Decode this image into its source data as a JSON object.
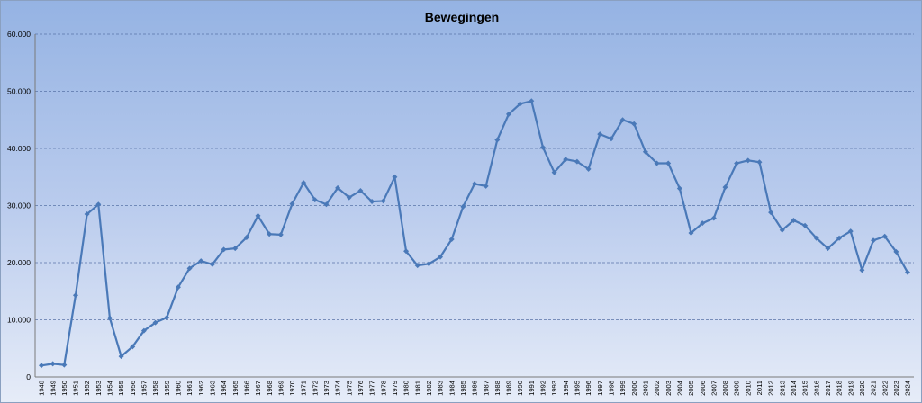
{
  "chart_data": {
    "type": "line",
    "title": "Bewegingen",
    "xlabel": "",
    "ylabel": "",
    "ylim": [
      0,
      60000
    ],
    "y_ticks": [
      0,
      10000,
      20000,
      30000,
      40000,
      50000,
      60000
    ],
    "y_tick_labels": [
      "0",
      "10.000",
      "20.000",
      "30.000",
      "40.000",
      "50.000",
      "60.000"
    ],
    "grid": true,
    "legend": "none",
    "line_color": "#4a79b8",
    "categories": [
      "1948",
      "1949",
      "1950",
      "1951",
      "1952",
      "1953",
      "1954",
      "1955",
      "1956",
      "1957",
      "1958",
      "1959",
      "1960",
      "1961",
      "1962",
      "1963",
      "1964",
      "1965",
      "1966",
      "1967",
      "1968",
      "1969",
      "1970",
      "1971",
      "1972",
      "1973",
      "1974",
      "1975",
      "1976",
      "1977",
      "1978",
      "1979",
      "1980",
      "1981",
      "1982",
      "1983",
      "1984",
      "1985",
      "1986",
      "1987",
      "1988",
      "1989",
      "1990",
      "1991",
      "1992",
      "1993",
      "1994",
      "1995",
      "1996",
      "1997",
      "1998",
      "1999",
      "2000",
      "2001",
      "2002",
      "2003",
      "2004",
      "2005",
      "2006",
      "2007",
      "2008",
      "2009",
      "2010",
      "2011",
      "2012",
      "2013",
      "2014",
      "2015",
      "2016",
      "2017",
      "2018",
      "2019",
      "2020",
      "2021",
      "2022",
      "2023",
      "2024"
    ],
    "values": [
      2000,
      2300,
      2100,
      14300,
      28500,
      30200,
      10300,
      3600,
      5300,
      8100,
      9500,
      10400,
      15700,
      19000,
      20300,
      19700,
      22300,
      22500,
      24400,
      28200,
      25000,
      24900,
      30300,
      34000,
      31000,
      30200,
      33100,
      31400,
      32600,
      30700,
      30800,
      35000,
      22000,
      19500,
      19800,
      21000,
      24100,
      29800,
      33800,
      33400,
      41500,
      46000,
      47800,
      48300,
      40200,
      35800,
      38100,
      37700,
      36400,
      42500,
      41700,
      45000,
      44300,
      39400,
      37400,
      37400,
      33000,
      25200,
      26900,
      27800,
      33200,
      37400,
      37900,
      37600,
      28800,
      25700,
      27400,
      26500,
      24300,
      22500,
      24300,
      25500,
      18700,
      23900,
      24600,
      21900,
      18300
    ]
  }
}
